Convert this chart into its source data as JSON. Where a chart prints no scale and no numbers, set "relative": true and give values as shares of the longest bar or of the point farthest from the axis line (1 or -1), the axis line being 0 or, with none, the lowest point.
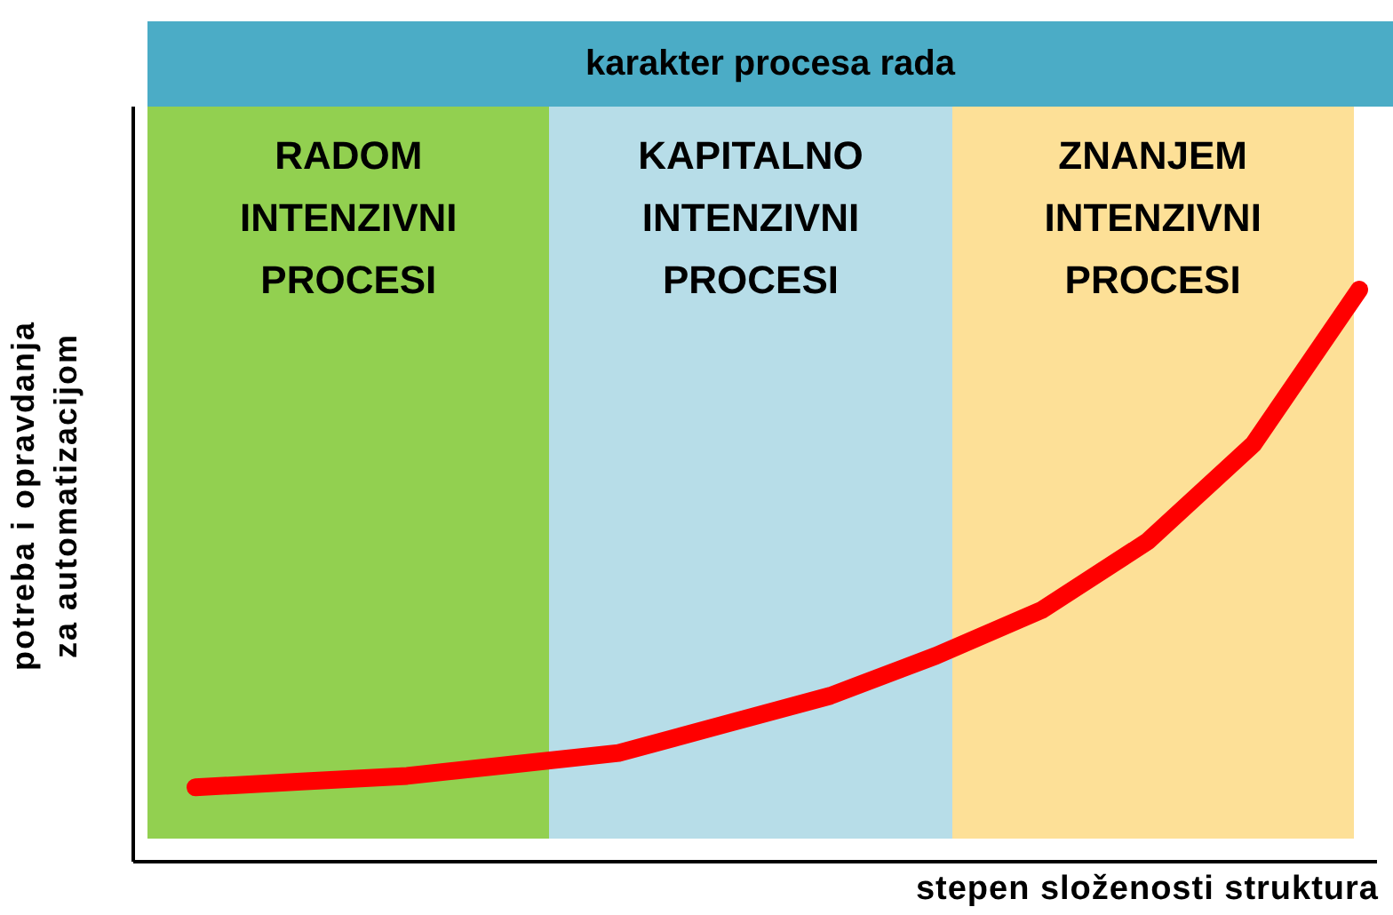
{
  "chart_data": {
    "type": "line",
    "relative": true,
    "title": "karakter procesa rada",
    "xlabel": "stepen složenosti struktura",
    "ylabel": "potreba i opravdanja za automatizacijom",
    "grid": false,
    "marker": "none",
    "line_style": "solid",
    "categories": [
      null,
      null,
      null,
      null,
      null,
      null,
      null,
      null,
      null,
      null,
      null,
      null
    ],
    "series": [
      {
        "color": "#ff0000",
        "values": [
          0.13,
          0.14,
          0.15,
          0.17,
          0.19,
          0.24,
          0.29,
          0.36,
          0.44,
          0.56,
          0.73,
          1.0
        ]
      }
    ],
    "annotations": [
      "RADOM INTENZIVNI PROCESI",
      "KAPITALNO INTENZIVNI PROCESI",
      "ZNANJEM INTENZIVNI PROCESI"
    ]
  }
}
